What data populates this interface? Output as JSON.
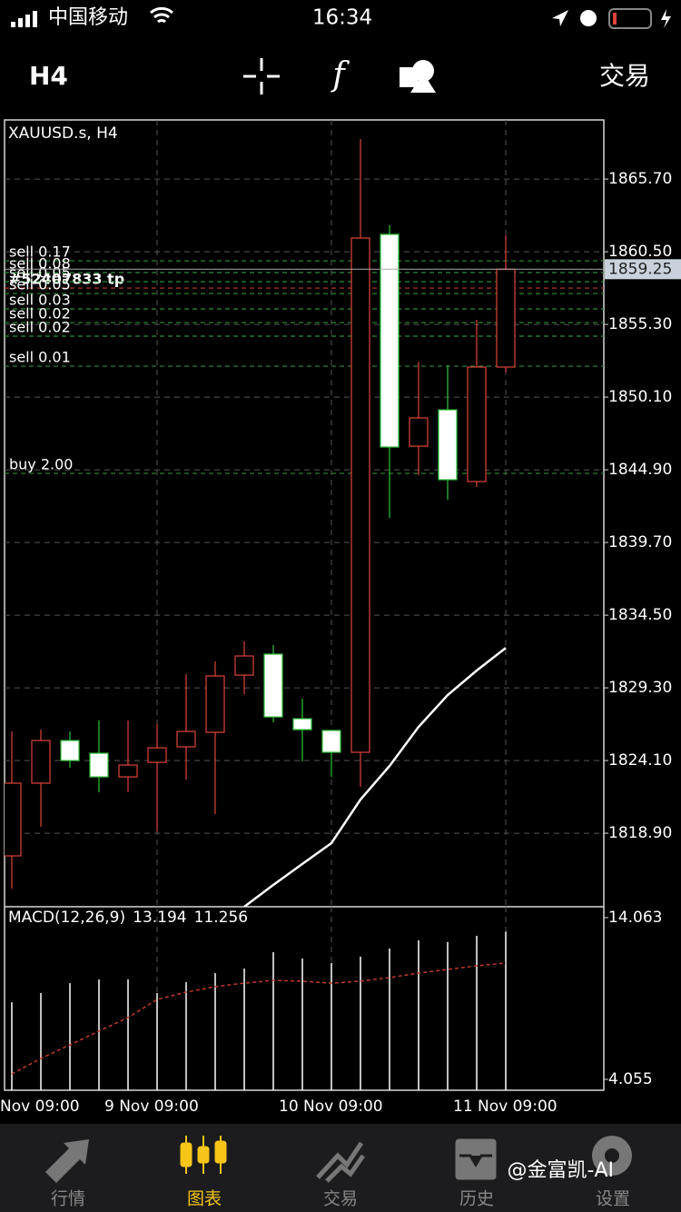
{
  "status_bar": {
    "carrier": "中国移动",
    "time": "16:34"
  },
  "toolbar": {
    "timeframe": "H4",
    "function_icon": "f",
    "trade": "交易"
  },
  "chart_data": [
    {
      "type": "candlestick",
      "title": "XAUUSD.s, H4",
      "categories": [
        null,
        null,
        null,
        null,
        null,
        "9 Nov 09:00",
        null,
        null,
        null,
        null,
        null,
        "10 Nov 09:00",
        null,
        null,
        null,
        null,
        null,
        "11 Nov 09:00"
      ],
      "x_label_cut": "Nov 09:00",
      "open": [
        1817.28,
        1822.48,
        1825.53,
        1824.62,
        1822.93,
        1823.97,
        1825.08,
        1826.12,
        1830.21,
        1831.71,
        1827.09,
        1826.25,
        1824.69,
        1861.74,
        1846.59,
        1849.19,
        1844.06,
        1852.25
      ],
      "high": [
        1826.18,
        1826.31,
        1826.18,
        1826.96,
        1826.96,
        1826.7,
        1830.28,
        1831.19,
        1832.62,
        1832.36,
        1828.52,
        1826.25,
        1868.56,
        1862.39,
        1852.64,
        1852.38,
        1855.63,
        1861.67
      ],
      "low": [
        1814.94,
        1819.36,
        1823.58,
        1821.83,
        1821.83,
        1819.03,
        1822.74,
        1820.27,
        1828.85,
        1826.83,
        1824.04,
        1822.93,
        1822.22,
        1841.46,
        1844.51,
        1842.76,
        1843.67,
        1851.86
      ],
      "close": [
        1822.48,
        1825.53,
        1824.1,
        1822.93,
        1823.78,
        1825.01,
        1826.18,
        1830.15,
        1831.58,
        1827.22,
        1826.31,
        1824.69,
        1861.48,
        1846.53,
        1848.61,
        1844.19,
        1852.25,
        1859.25
      ],
      "up_color": "#e0443b",
      "down_color": "#2fc33a",
      "ma": {
        "color": "#ffffff",
        "values": [
          null,
          null,
          null,
          null,
          null,
          null,
          null,
          null,
          1813.64,
          1815.2,
          1816.7,
          1818.19,
          1821.31,
          1823.71,
          1826.51,
          1828.78,
          1830.54,
          1832.16
        ]
      },
      "orders": [
        {
          "label": "sell 0.17",
          "price": 1859.85,
          "color": "#2e8b3a"
        },
        {
          "label": "#52407833 tp",
          "price": 1857.9,
          "color": "#c0392b"
        },
        {
          "label": "sell 0.08",
          "price": 1859.01,
          "color": "#2e8b3a"
        },
        {
          "label": "sell 0.05",
          "price": 1858.36,
          "color": "#2e8b3a"
        },
        {
          "label": "sell 0.05",
          "price": 1857.51,
          "color": "#2e8b3a"
        },
        {
          "label": "sell 0.03",
          "price": 1856.41,
          "color": "#2e8b3a"
        },
        {
          "label": "sell 0.02",
          "price": 1855.43,
          "color": "#2e8b3a"
        },
        {
          "label": "sell 0.02",
          "price": 1854.46,
          "color": "#2e8b3a"
        },
        {
          "label": "sell 0.01",
          "price": 1852.31,
          "color": "#2e8b3a"
        },
        {
          "label": "buy 2.00",
          "price": 1844.64,
          "color": "#2e8b3a"
        }
      ],
      "ylim": [
        1813.64,
        1869.93
      ],
      "yticks": [
        {
          "value": 1865.7,
          "label": "1865.70"
        },
        {
          "value": 1860.5,
          "label": "1860.50"
        },
        {
          "value": 1855.3,
          "label": "1855.30"
        },
        {
          "value": 1850.1,
          "label": "1850.10"
        },
        {
          "value": 1844.9,
          "label": "1844.90"
        },
        {
          "value": 1839.7,
          "label": "1839.70"
        },
        {
          "value": 1834.5,
          "label": "1834.50"
        },
        {
          "value": 1829.3,
          "label": "1829.30"
        },
        {
          "value": 1824.1,
          "label": "1824.10"
        },
        {
          "value": 1818.9,
          "label": "1818.90"
        }
      ],
      "grid": true
    },
    {
      "type": "macd",
      "title": "MACD(12,26,9)",
      "histogram": [
        8.83,
        9.4,
        10.01,
        10.24,
        10.24,
        9.4,
        10.07,
        10.63,
        10.91,
        11.93,
        11.53,
        11.25,
        11.65,
        12.15,
        12.66,
        12.55,
        12.94,
        13.194
      ],
      "signal": {
        "color": "#c0392b",
        "values": [
          4.39,
          5.35,
          6.19,
          7.04,
          7.88,
          9.0,
          9.45,
          9.79,
          10.01,
          10.18,
          10.13,
          10.01,
          10.13,
          10.35,
          10.63,
          10.86,
          11.08,
          11.256
        ]
      },
      "ylim": [
        3.381,
        14.738
      ],
      "yticks": [
        14.063,
        4.055
      ]
    }
  ],
  "tab_bar": {
    "tabs": [
      "行情",
      "图表",
      "交易",
      "历史",
      "设置"
    ],
    "active": 1
  },
  "watermark": "@金富凯-AI"
}
